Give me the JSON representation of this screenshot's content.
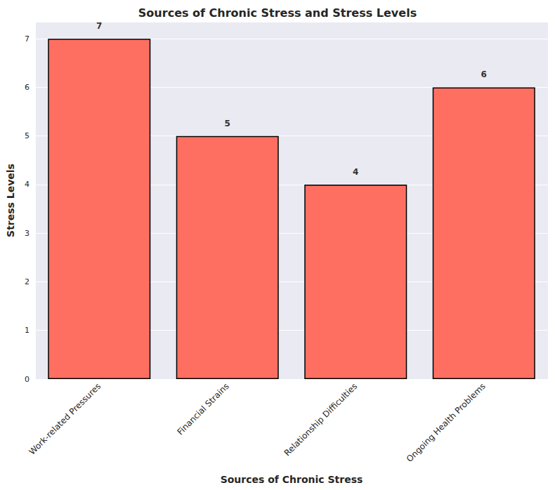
{
  "chart_data": {
    "type": "bar",
    "title": "Sources of Chronic Stress and Stress Levels",
    "x_label": "Sources of Chronic Stress",
    "y_label": "Stress Levels",
    "categories": [
      "Work-related Pressures",
      "Financial Strains",
      "Relationship Difficulties",
      "Ongoing Health Problems"
    ],
    "values": [
      7,
      5,
      4,
      6
    ],
    "color": "#ff6f61",
    "ylim": [
      0,
      7.35
    ],
    "yticks": [
      0,
      1,
      2,
      3,
      4,
      5,
      6,
      7
    ],
    "grid": true,
    "data_labels": true
  }
}
